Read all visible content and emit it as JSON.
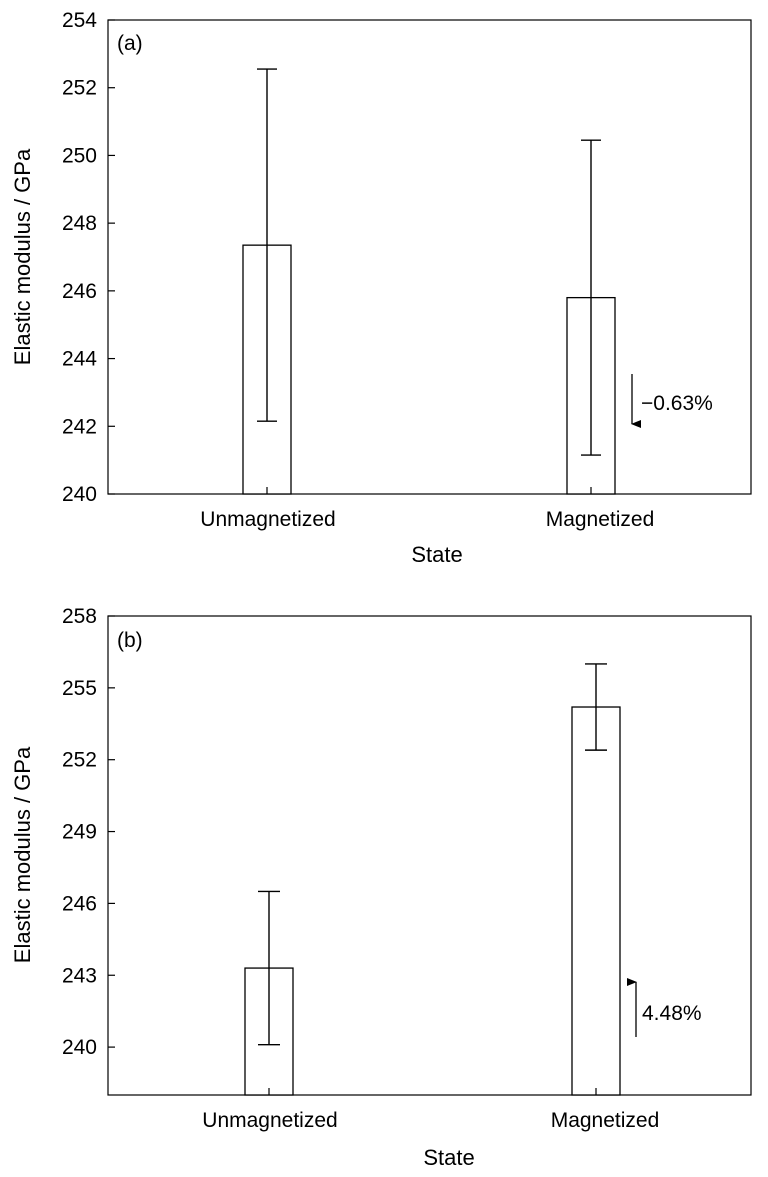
{
  "chart_data": [
    {
      "type": "bar",
      "panel_label": "(a)",
      "categories": [
        "Unmagnetized",
        "Magnetized"
      ],
      "values": [
        247.35,
        245.8
      ],
      "error_high": [
        252.55,
        250.45
      ],
      "error_low": [
        242.15,
        241.15
      ],
      "xlabel": "State",
      "ylabel": "Elastic modulus / GPa",
      "ylim": [
        240,
        254
      ],
      "yticks": [
        "240",
        "242",
        "244",
        "246",
        "248",
        "250",
        "252",
        "254"
      ],
      "grid": false,
      "annotation": {
        "text": "−0.63%",
        "direction": "down",
        "category": "Magnetized"
      }
    },
    {
      "type": "bar",
      "panel_label": "(b)",
      "categories": [
        "Unmagnetized",
        "Magnetized"
      ],
      "values": [
        243.3,
        254.2
      ],
      "error_high": [
        246.5,
        256.0
      ],
      "error_low": [
        240.1,
        252.4
      ],
      "xlabel": "State",
      "ylabel": "Elastic modulus / GPa",
      "ylim": [
        238,
        258
      ],
      "yticks": [
        "240",
        "243",
        "246",
        "249",
        "252",
        "255",
        "258"
      ],
      "grid": false,
      "annotation": {
        "text": "4.48%",
        "direction": "up",
        "category": "Magnetized"
      }
    }
  ]
}
